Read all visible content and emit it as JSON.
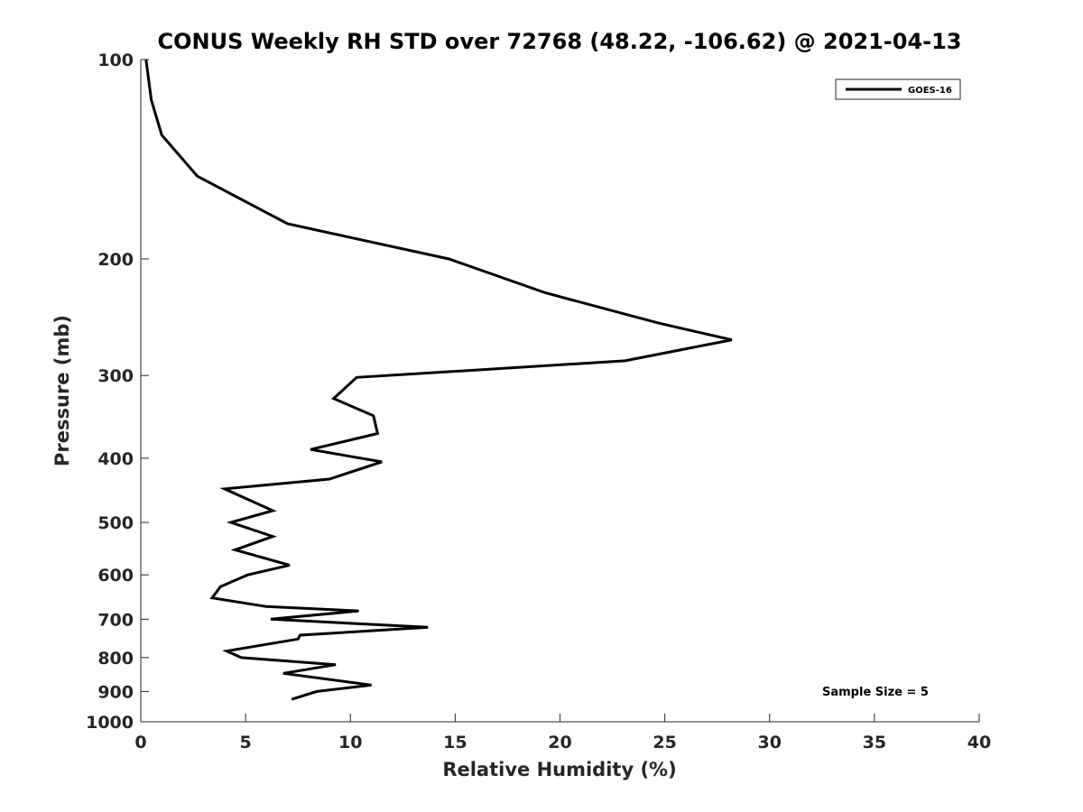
{
  "chart_data": {
    "type": "line",
    "title": "CONUS Weekly RH STD over 72768 (48.22, -106.62) @ 2021-04-13",
    "xlabel": "Relative Humidity (%)",
    "ylabel": "Pressure (mb)",
    "xlim": [
      0,
      40
    ],
    "ylim": [
      100,
      1000
    ],
    "y_scale": "log",
    "y_reversed": true,
    "x_ticks": [
      0,
      5,
      10,
      15,
      20,
      25,
      30,
      35,
      40
    ],
    "x_tick_labels": [
      "0",
      "5",
      "10",
      "15",
      "20",
      "25",
      "30",
      "35",
      "40"
    ],
    "y_ticks": [
      100,
      200,
      300,
      400,
      500,
      600,
      700,
      800,
      900,
      1000
    ],
    "y_tick_labels": [
      "100",
      "200",
      "300",
      "400",
      "500",
      "600",
      "700",
      "800",
      "900",
      "1000"
    ],
    "grid": false,
    "legend_position": "top-right",
    "series": [
      {
        "name": "GOES-16",
        "color": "#000000",
        "points": [
          [
            0.25,
            100
          ],
          [
            0.5,
            115
          ],
          [
            1.0,
            130
          ],
          [
            2.7,
            150
          ],
          [
            7.0,
            177
          ],
          [
            14.7,
            200
          ],
          [
            19.3,
            225
          ],
          [
            24.7,
            250
          ],
          [
            28.2,
            265
          ],
          [
            23.1,
            285
          ],
          [
            10.3,
            302
          ],
          [
            9.2,
            325
          ],
          [
            11.1,
            345
          ],
          [
            11.3,
            367
          ],
          [
            8.1,
            388
          ],
          [
            11.5,
            405
          ],
          [
            9.0,
            430
          ],
          [
            4.0,
            445
          ],
          [
            6.3,
            480
          ],
          [
            4.3,
            500
          ],
          [
            6.3,
            525
          ],
          [
            4.5,
            550
          ],
          [
            7.1,
            580
          ],
          [
            5.1,
            600
          ],
          [
            3.8,
            625
          ],
          [
            3.4,
            650
          ],
          [
            6.0,
            670
          ],
          [
            10.4,
            680
          ],
          [
            6.2,
            700
          ],
          [
            13.7,
            720
          ],
          [
            7.6,
            740
          ],
          [
            7.5,
            750
          ],
          [
            4.1,
            782
          ],
          [
            4.8,
            800
          ],
          [
            9.3,
            820
          ],
          [
            6.8,
            845
          ],
          [
            11.0,
            880
          ],
          [
            8.4,
            900
          ],
          [
            7.2,
            925
          ]
        ]
      }
    ],
    "annotations": [
      "Sample Size = 5"
    ]
  }
}
